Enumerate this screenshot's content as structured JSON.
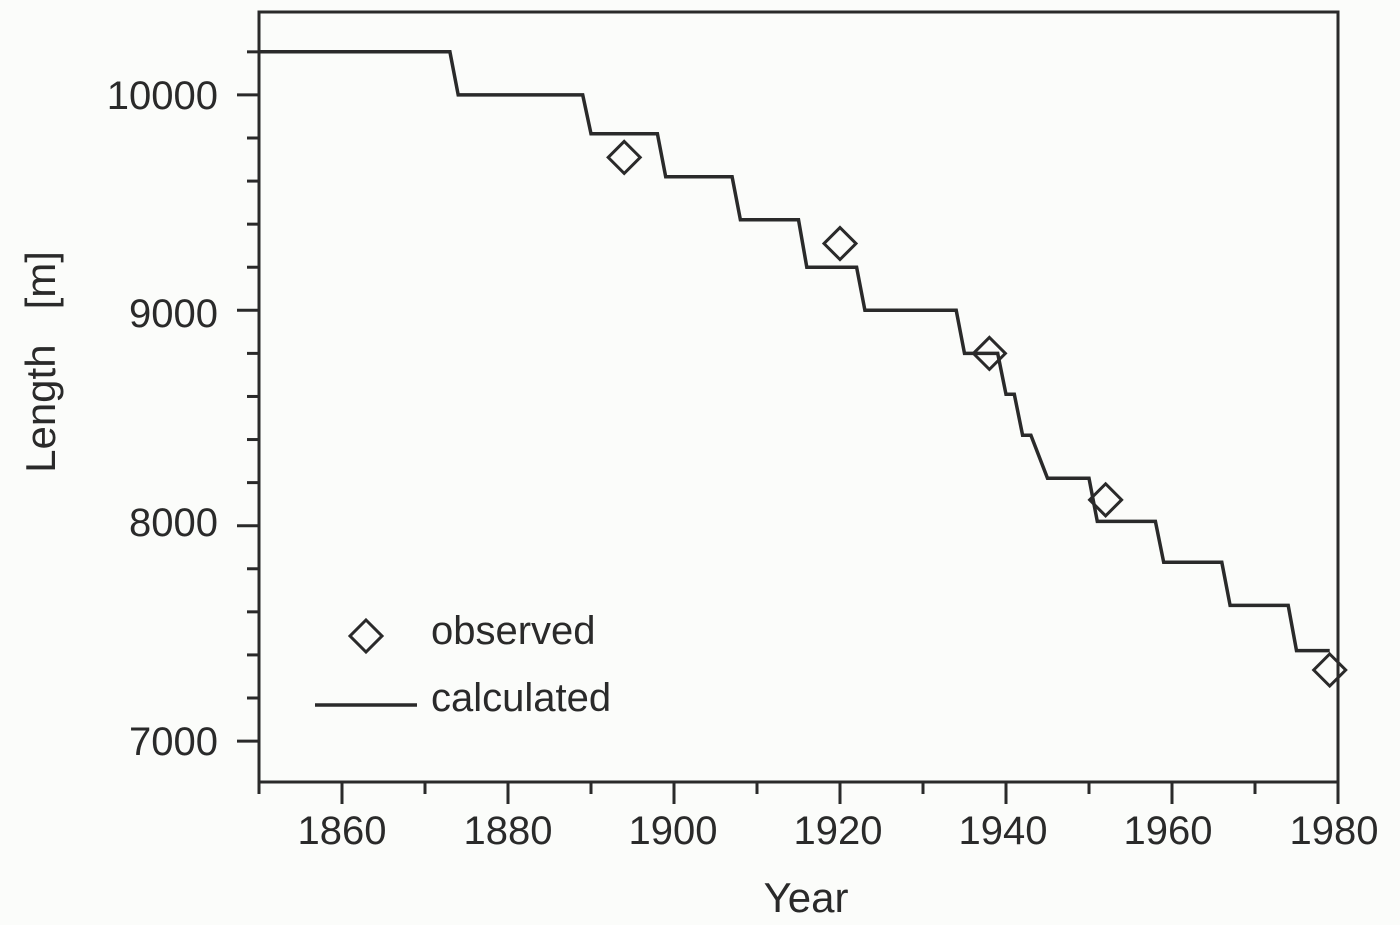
{
  "chart_data": {
    "type": "line",
    "title": "",
    "xlabel": "Year",
    "ylabel": "Length   [m]",
    "xlim": [
      1850,
      1980
    ],
    "ylim": [
      6810,
      10385
    ],
    "x_ticks": [
      1860,
      1880,
      1900,
      1920,
      1940,
      1960,
      1980
    ],
    "x_tick_labels": [
      "1860",
      "1880",
      "1900",
      "1920",
      "1940",
      "1960",
      "1980"
    ],
    "x_minor_step": 10,
    "y_ticks": [
      7000,
      8000,
      9000,
      10000
    ],
    "y_tick_labels": [
      "7000",
      "8000",
      "9000",
      "10000"
    ],
    "y_minor_step": 200,
    "grid": false,
    "legend_position": "lower left",
    "legend": [
      {
        "label": "observed",
        "marker": "diamond-open"
      },
      {
        "label": "calculated",
        "marker": "line"
      }
    ],
    "series": [
      {
        "name": "calculated",
        "type": "step",
        "points": [
          [
            1850,
            10200
          ],
          [
            1873,
            10200
          ],
          [
            1874,
            10000
          ],
          [
            1889,
            10000
          ],
          [
            1890,
            9820
          ],
          [
            1898,
            9820
          ],
          [
            1899,
            9620
          ],
          [
            1907,
            9620
          ],
          [
            1908,
            9420
          ],
          [
            1915,
            9420
          ],
          [
            1916,
            9200
          ],
          [
            1922,
            9200
          ],
          [
            1923,
            9000
          ],
          [
            1934,
            9000
          ],
          [
            1935,
            8800
          ],
          [
            1939,
            8800
          ],
          [
            1940,
            8610
          ],
          [
            1941,
            8610
          ],
          [
            1942,
            8420
          ],
          [
            1943,
            8420
          ],
          [
            1945,
            8220
          ],
          [
            1950,
            8220
          ],
          [
            1951,
            8020
          ],
          [
            1958,
            8020
          ],
          [
            1959,
            7830
          ],
          [
            1966,
            7830
          ],
          [
            1967,
            7630
          ],
          [
            1974,
            7630
          ],
          [
            1975,
            7420
          ],
          [
            1979,
            7420
          ]
        ]
      },
      {
        "name": "observed",
        "type": "scatter",
        "points": [
          [
            1894,
            9710
          ],
          [
            1920,
            9310
          ],
          [
            1938,
            8800
          ],
          [
            1952,
            8120
          ],
          [
            1979,
            7330
          ]
        ]
      }
    ]
  },
  "labels": {
    "xlabel": "Year",
    "ylabel": "Length   [m]",
    "legend_observed": "observed",
    "legend_calculated": "calculated",
    "x_tick_1860": "1860",
    "x_tick_1880": "1880",
    "x_tick_1900": "1900",
    "x_tick_1920": "1920",
    "x_tick_1940": "1940",
    "x_tick_1960": "1960",
    "x_tick_1980": "1980",
    "y_tick_7000": "7000",
    "y_tick_8000": "8000",
    "y_tick_9000": "9000",
    "y_tick_10000": "10000"
  },
  "colors": {
    "line": "#2a2a2a",
    "background": "#fbfcfa"
  }
}
